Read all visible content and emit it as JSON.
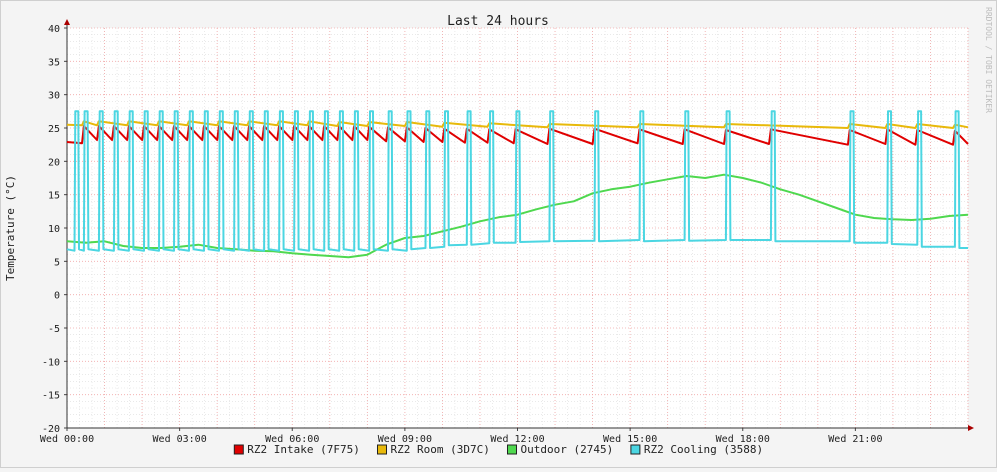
{
  "chart_data": {
    "type": "line",
    "title": "Last 24 hours",
    "ylabel": "Temperature (°C)",
    "xlabel": "",
    "watermark": "RRDTOOL / TOBI OETIKER",
    "ylim": [
      -20,
      40
    ],
    "yticks": [
      40,
      35,
      30,
      25,
      20,
      15,
      10,
      5,
      0,
      -5,
      -10,
      -15,
      -20
    ],
    "xlim": [
      0,
      24
    ],
    "xticks": [
      {
        "x": 0,
        "label": "Wed 00:00"
      },
      {
        "x": 3,
        "label": "Wed 03:00"
      },
      {
        "x": 6,
        "label": "Wed 06:00"
      },
      {
        "x": 9,
        "label": "Wed 09:00"
      },
      {
        "x": 12,
        "label": "Wed 12:00"
      },
      {
        "x": 15,
        "label": "Wed 15:00"
      },
      {
        "x": 18,
        "label": "Wed 18:00"
      },
      {
        "x": 21,
        "label": "Wed 21:00"
      }
    ],
    "grid": true,
    "legend_position": "bottom",
    "series": [
      {
        "name": "RZ2 Intake (7F75)",
        "color": "#e00000",
        "x": [
          0,
          0.4,
          0.45,
          0.8,
          0.85,
          1.2,
          1.25,
          1.6,
          1.65,
          2.0,
          2.05,
          2.4,
          2.45,
          2.8,
          2.85,
          3.2,
          3.25,
          3.6,
          3.65,
          4.0,
          4.05,
          4.4,
          4.45,
          4.8,
          4.85,
          5.2,
          5.25,
          5.6,
          5.65,
          6.0,
          6.05,
          6.4,
          6.45,
          6.8,
          6.85,
          7.2,
          7.25,
          7.6,
          7.65,
          8.0,
          8.05,
          8.5,
          8.55,
          9.0,
          9.05,
          9.5,
          9.55,
          10.0,
          10.05,
          10.6,
          10.65,
          11.2,
          11.25,
          11.9,
          11.95,
          12.8,
          12.85,
          14.0,
          14.05,
          15.2,
          15.25,
          16.4,
          16.45,
          17.5,
          17.55,
          18.7,
          18.75,
          20.8,
          20.85,
          21.8,
          21.85,
          22.6,
          22.65,
          23.6,
          23.65,
          24
        ],
        "values": [
          22.9,
          22.7,
          25.3,
          23.2,
          25.3,
          23.2,
          25.3,
          23.2,
          25.3,
          23.2,
          25.3,
          23.2,
          25.3,
          23.2,
          25.3,
          23.2,
          25.3,
          23.2,
          25.3,
          23.2,
          25.3,
          23.2,
          25.3,
          23.2,
          25.3,
          23.2,
          25.3,
          23.2,
          25.3,
          23.2,
          25.3,
          23.2,
          25.3,
          23.2,
          25.3,
          23.2,
          25.3,
          23.2,
          25.3,
          23.2,
          25.2,
          23.0,
          25.1,
          23.0,
          25.1,
          22.9,
          25.0,
          22.9,
          24.9,
          22.8,
          24.9,
          22.8,
          24.8,
          22.7,
          24.8,
          22.6,
          24.9,
          22.6,
          24.9,
          22.7,
          24.8,
          22.6,
          24.8,
          22.6,
          24.7,
          22.6,
          24.8,
          22.5,
          24.7,
          22.6,
          24.8,
          22.5,
          24.7,
          22.5,
          24.6,
          22.6
        ]
      },
      {
        "name": "RZ2 Room (3D7C)",
        "color": "#e8b90a",
        "x": [
          0,
          0.4,
          0.45,
          0.8,
          0.85,
          1.6,
          1.65,
          2.4,
          2.45,
          3.2,
          3.25,
          4.0,
          4.05,
          4.8,
          4.85,
          5.6,
          5.65,
          6.4,
          6.45,
          7.2,
          7.25,
          8.0,
          8.05,
          9.0,
          9.05,
          10.0,
          10.05,
          11.2,
          11.25,
          12.8,
          12.85,
          15.2,
          15.25,
          17.5,
          17.55,
          20.8,
          20.85,
          21.8,
          21.85,
          22.6,
          22.65,
          23.6,
          23.65,
          24
        ],
        "values": [
          25.5,
          25.4,
          26.0,
          25.4,
          26.0,
          25.4,
          26.0,
          25.4,
          26.0,
          25.4,
          26.0,
          25.4,
          26.0,
          25.4,
          26.0,
          25.4,
          26.0,
          25.4,
          26.0,
          25.3,
          25.9,
          25.3,
          25.9,
          25.3,
          25.9,
          25.2,
          25.8,
          25.2,
          25.7,
          25.1,
          25.6,
          25.1,
          25.6,
          25.1,
          25.6,
          25.0,
          25.6,
          25.0,
          25.6,
          25.0,
          25.6,
          25.0,
          25.5,
          25.1
        ]
      },
      {
        "name": "Outdoor (2745)",
        "color": "#4fd84f",
        "x": [
          0,
          0.5,
          1.0,
          1.5,
          2.0,
          2.5,
          3.0,
          3.5,
          4.0,
          4.5,
          5.0,
          5.5,
          6.0,
          6.5,
          7.0,
          7.5,
          8.0,
          8.5,
          9.0,
          9.5,
          10.0,
          10.5,
          11.0,
          11.5,
          12.0,
          12.5,
          13.0,
          13.5,
          14.0,
          14.5,
          15.0,
          15.5,
          16.0,
          16.5,
          17.0,
          17.5,
          18.0,
          18.5,
          19.0,
          19.5,
          20.0,
          20.5,
          21.0,
          21.5,
          22.0,
          22.5,
          23.0,
          23.5,
          24
        ],
        "values": [
          8.0,
          7.8,
          8.0,
          7.3,
          7.0,
          7.0,
          7.2,
          7.5,
          7.0,
          6.8,
          6.6,
          6.5,
          6.2,
          6.0,
          5.8,
          5.6,
          6.0,
          7.5,
          8.5,
          8.8,
          9.5,
          10.2,
          11.0,
          11.6,
          12.0,
          12.8,
          13.5,
          14.0,
          15.2,
          15.8,
          16.2,
          16.8,
          17.3,
          17.8,
          17.5,
          18.0,
          17.5,
          16.8,
          15.8,
          15.0,
          14.0,
          13.0,
          12.0,
          11.5,
          11.3,
          11.2,
          11.4,
          11.8,
          12.0
        ]
      },
      {
        "name": "RZ2 Cooling (3588)",
        "color": "#4bd6e2",
        "x": [
          0,
          0.2,
          0.22,
          0.3,
          0.32,
          0.45,
          0.47,
          0.55,
          0.57,
          0.85,
          0.87,
          0.95,
          0.97,
          1.25,
          1.27,
          1.35,
          1.37,
          1.65,
          1.67,
          1.75,
          1.77,
          2.05,
          2.07,
          2.15,
          2.17,
          2.45,
          2.47,
          2.55,
          2.57,
          2.85,
          2.87,
          2.95,
          2.97,
          3.25,
          3.27,
          3.35,
          3.37,
          3.65,
          3.67,
          3.75,
          3.77,
          4.05,
          4.07,
          4.15,
          4.17,
          4.45,
          4.47,
          4.55,
          4.57,
          4.85,
          4.87,
          4.95,
          4.97,
          5.25,
          5.27,
          5.35,
          5.37,
          5.65,
          5.67,
          5.75,
          5.77,
          6.05,
          6.07,
          6.15,
          6.17,
          6.45,
          6.47,
          6.55,
          6.57,
          6.85,
          6.87,
          6.95,
          6.97,
          7.25,
          7.27,
          7.35,
          7.37,
          7.65,
          7.67,
          7.75,
          7.77,
          8.05,
          8.07,
          8.15,
          8.17,
          8.55,
          8.57,
          8.65,
          8.67,
          9.05,
          9.07,
          9.15,
          9.17,
          9.55,
          9.57,
          9.65,
          9.67,
          10.05,
          10.07,
          10.15,
          10.17,
          10.65,
          10.67,
          10.75,
          10.77,
          11.25,
          11.27,
          11.35,
          11.37,
          11.95,
          11.97,
          12.05,
          12.07,
          12.85,
          12.87,
          12.95,
          12.97,
          14.05,
          14.07,
          14.15,
          14.17,
          15.25,
          15.27,
          15.35,
          15.37,
          16.45,
          16.47,
          16.55,
          16.57,
          17.55,
          17.57,
          17.65,
          17.67,
          18.75,
          18.77,
          18.85,
          18.87,
          20.85,
          20.87,
          20.95,
          20.97,
          21.85,
          21.87,
          21.95,
          21.97,
          22.65,
          22.67,
          22.75,
          22.77,
          23.65,
          23.67,
          23.75,
          23.77,
          24
        ],
        "values": [
          6.8,
          6.6,
          27.5,
          27.5,
          6.8,
          6.6,
          27.5,
          27.5,
          6.8,
          6.6,
          27.5,
          27.5,
          6.8,
          6.6,
          27.5,
          27.5,
          6.8,
          6.6,
          27.5,
          27.5,
          6.8,
          6.6,
          27.5,
          27.5,
          6.8,
          6.6,
          27.5,
          27.5,
          6.8,
          6.6,
          27.5,
          27.5,
          6.8,
          6.6,
          27.5,
          27.5,
          6.8,
          6.6,
          27.5,
          27.5,
          6.8,
          6.6,
          27.5,
          27.5,
          6.8,
          6.6,
          27.5,
          27.5,
          6.8,
          6.6,
          27.5,
          27.5,
          6.8,
          6.6,
          27.5,
          27.5,
          6.8,
          6.6,
          27.5,
          27.5,
          6.8,
          6.6,
          27.5,
          27.5,
          6.8,
          6.6,
          27.5,
          27.5,
          6.8,
          6.6,
          27.5,
          27.5,
          6.8,
          6.6,
          27.5,
          27.5,
          6.8,
          6.6,
          27.5,
          27.5,
          6.8,
          6.6,
          27.5,
          27.5,
          6.8,
          6.6,
          27.5,
          27.5,
          6.8,
          6.6,
          27.5,
          27.5,
          6.8,
          7.0,
          27.5,
          27.5,
          7.0,
          7.2,
          27.5,
          27.5,
          7.4,
          7.5,
          27.5,
          27.5,
          7.5,
          7.7,
          27.5,
          27.5,
          7.8,
          7.8,
          27.5,
          27.5,
          7.9,
          8.0,
          27.5,
          27.5,
          8.0,
          8.1,
          27.5,
          27.5,
          8.0,
          8.2,
          27.5,
          27.5,
          8.0,
          8.2,
          27.5,
          27.5,
          8.1,
          8.2,
          27.5,
          27.5,
          8.2,
          8.2,
          27.5,
          27.5,
          8.0,
          8.0,
          27.5,
          27.5,
          7.8,
          7.8,
          27.5,
          27.5,
          7.6,
          7.5,
          27.5,
          27.5,
          7.2,
          7.2,
          27.5,
          27.5,
          7.0,
          7.0
        ]
      }
    ]
  }
}
